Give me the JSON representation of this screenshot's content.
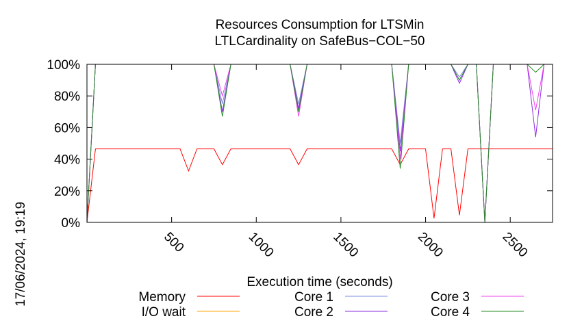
{
  "chart_data": {
    "type": "line",
    "title": [
      "Resources Consumption for LTSMin",
      "LTLCardinality on SafeBus−COL−50"
    ],
    "xlabel": "Execution time (seconds)",
    "ylabel": "",
    "xlim": [
      0,
      2750
    ],
    "ylim": [
      0,
      100
    ],
    "xticks": [
      500,
      1000,
      1500,
      2000,
      2500
    ],
    "yticks": [
      0,
      20,
      40,
      60,
      80,
      100
    ],
    "ytick_labels": [
      "0%",
      "20%",
      "40%",
      "60%",
      "80%",
      "100%"
    ],
    "grid": false,
    "legend_position": "bottom",
    "timestamp": "17/06/2024, 19:19",
    "series": [
      {
        "name": "Memory",
        "color": "#ff0000",
        "x": [
          0,
          50,
          100,
          200,
          300,
          400,
          500,
          550,
          600,
          650,
          700,
          750,
          800,
          850,
          900,
          950,
          1000,
          1050,
          1100,
          1150,
          1200,
          1250,
          1300,
          1350,
          1400,
          1450,
          1500,
          1550,
          1600,
          1650,
          1700,
          1750,
          1800,
          1850,
          1900,
          1950,
          2000,
          2050,
          2100,
          2150,
          2200,
          2250,
          2300,
          2350,
          2400,
          2450,
          2500,
          2550,
          2600,
          2650,
          2700,
          2750
        ],
        "y": [
          0,
          46.5,
          46.5,
          46.5,
          46.5,
          46.5,
          46.5,
          46.5,
          32.5,
          46.5,
          46.5,
          46.5,
          36.5,
          46.5,
          46.5,
          46.5,
          46.5,
          46.5,
          46.5,
          46.5,
          46.5,
          36.5,
          46.5,
          46.5,
          46.5,
          46.5,
          46.5,
          46.5,
          46.5,
          46.5,
          46.5,
          46.5,
          46.5,
          36.5,
          46.5,
          46.5,
          46.5,
          2.5,
          46.5,
          46.5,
          4.5,
          46.5,
          46.5,
          46.5,
          46.5,
          46.5,
          46.5,
          46.5,
          46.5,
          46.5,
          46.5,
          46.5
        ]
      },
      {
        "name": "I/O wait",
        "color": "#ffa500",
        "x": [
          0,
          2750
        ],
        "y": [
          0,
          0
        ]
      },
      {
        "name": "Core 1",
        "color": "#7b8fe0",
        "x": [
          0,
          50,
          750,
          800,
          850,
          1200,
          1250,
          1300,
          1750,
          1800,
          1850,
          1900,
          2150,
          2200,
          2250,
          2300,
          2350,
          2400,
          2600,
          2650,
          2700,
          2750
        ],
        "y": [
          0,
          100,
          100,
          75,
          100,
          100,
          75,
          100,
          100,
          100,
          50,
          100,
          100,
          92,
          100,
          100,
          0,
          100,
          100,
          100,
          100,
          100
        ]
      },
      {
        "name": "Core 2",
        "color": "#8a2be2",
        "x": [
          0,
          50,
          750,
          800,
          850,
          1200,
          1250,
          1300,
          1750,
          1800,
          1850,
          1900,
          2150,
          2200,
          2250,
          2300,
          2350,
          2400,
          2600,
          2650,
          2700,
          2750
        ],
        "y": [
          0,
          100,
          100,
          70,
          100,
          100,
          72,
          100,
          100,
          100,
          45,
          100,
          100,
          88,
          100,
          100,
          0,
          100,
          100,
          54,
          100,
          100
        ]
      },
      {
        "name": "Core 3",
        "color": "#ee44ee",
        "x": [
          0,
          50,
          750,
          800,
          850,
          1200,
          1250,
          1300,
          1750,
          1800,
          1850,
          1900,
          2150,
          2200,
          2250,
          2300,
          2350,
          2400,
          2600,
          2650,
          2700,
          2750
        ],
        "y": [
          0,
          100,
          100,
          80,
          100,
          100,
          67,
          100,
          100,
          100,
          40,
          100,
          100,
          90,
          100,
          100,
          0,
          100,
          100,
          71,
          100,
          100
        ]
      },
      {
        "name": "Core 4",
        "color": "#228b22",
        "x": [
          0,
          50,
          750,
          800,
          850,
          1200,
          1250,
          1300,
          1750,
          1800,
          1850,
          1900,
          2150,
          2200,
          2250,
          2300,
          2350,
          2400,
          2600,
          2650,
          2700,
          2750
        ],
        "y": [
          0,
          100,
          100,
          67,
          100,
          100,
          70,
          100,
          100,
          100,
          34,
          100,
          100,
          90,
          100,
          100,
          0,
          100,
          100,
          95,
          100,
          100
        ]
      }
    ]
  }
}
